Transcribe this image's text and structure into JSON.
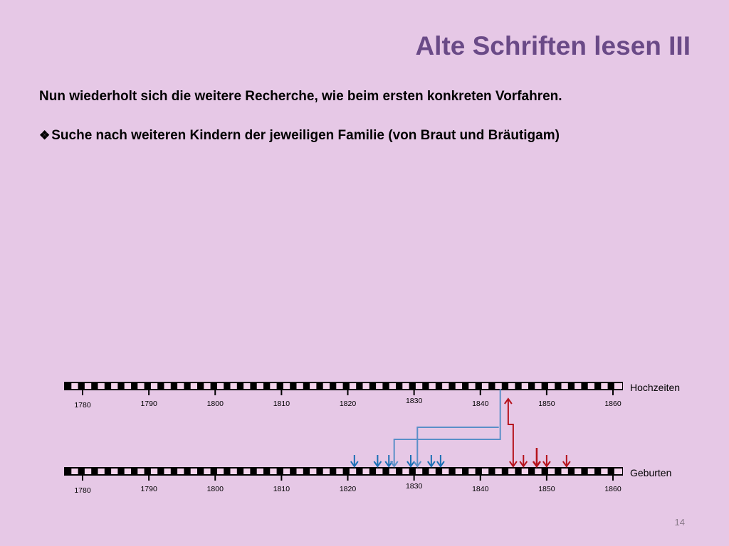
{
  "slide": {
    "title": "Alte Schriften lesen III",
    "paragraph": "Nun wiederholt sich die weitere Recherche, wie beim ersten konkreten Vorfahren.",
    "bullet_marker": "❖",
    "bullet_text": "Suche nach weiteren Kindern der jeweiligen Familie (von Braut und Bräutigam)",
    "page_number": "14"
  },
  "timeline": {
    "rows": [
      {
        "label": "Hochzeiten"
      },
      {
        "label": "Geburten"
      }
    ],
    "year_labels": [
      "1780",
      "1790",
      "1800",
      "1810",
      "1820",
      "1830",
      "1840",
      "1850",
      "1860"
    ],
    "year_start": 1780,
    "year_end": 1860,
    "colors": {
      "blue": "#1a6fb5",
      "light_blue": "#5a8fc8",
      "red": "#b5121b",
      "bar_dark": "#000000",
      "bar_light": "#f4d4ec"
    },
    "blue_births": [
      1821,
      1824.5,
      1826.2,
      1829.5,
      1832.6,
      1834
    ],
    "light_blue_births": [
      1827,
      1830.5
    ],
    "red_births": [
      1846.5,
      1850,
      1853
    ],
    "dark_red_births": [
      1848.5
    ],
    "marriage_year": 1843,
    "wedding_connector_year": 1844.2
  }
}
